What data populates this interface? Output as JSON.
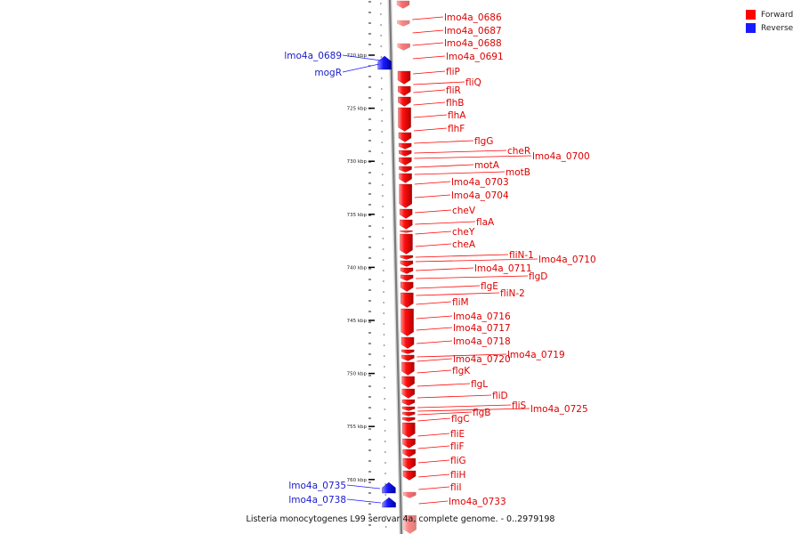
{
  "legend": {
    "forward_label": "Forward",
    "reverse_label": "Reverse",
    "forward_color": "#ff0000",
    "reverse_color": "#1a1aff"
  },
  "caption": "Listeria monocytogenes L99 serovar 4a, complete genome. - 0..2979198",
  "scale_labels": [
    "720 kbp",
    "725 kbp",
    "730 kbp",
    "735 kbp",
    "740 kbp",
    "745 kbp",
    "750 kbp",
    "755 kbp",
    "760 kbp"
  ],
  "forward_genes": [
    "lmo4a_0686",
    "lmo4a_0687",
    "lmo4a_0688",
    "lmo4a_0691",
    "fliP",
    "fliQ",
    "fliR",
    "flhB",
    "flhA",
    "flhF",
    "flgG",
    "cheR",
    "lmo4a_0700",
    "motA",
    "motB",
    "lmo4a_0703",
    "lmo4a_0704",
    "cheV",
    "flaA",
    "cheY",
    "cheA",
    "fliN-1",
    "lmo4a_0710",
    "lmo4a_0711",
    "flgD",
    "flgE",
    "fliN-2",
    "fliM",
    "lmo4a_0716",
    "lmo4a_0717",
    "lmo4a_0718",
    "lmo4a_0719",
    "lmo4a_0720",
    "flgK",
    "flgL",
    "fliD",
    "fliS",
    "lmo4a_0725",
    "flgB",
    "flgC",
    "fliE",
    "fliF",
    "fliG",
    "fliH",
    "fliI",
    "lmo4a_0733"
  ],
  "reverse_genes": [
    "lmo4a_0689",
    "mogR",
    "lmo4a_0735",
    "lmo4a_0738"
  ]
}
